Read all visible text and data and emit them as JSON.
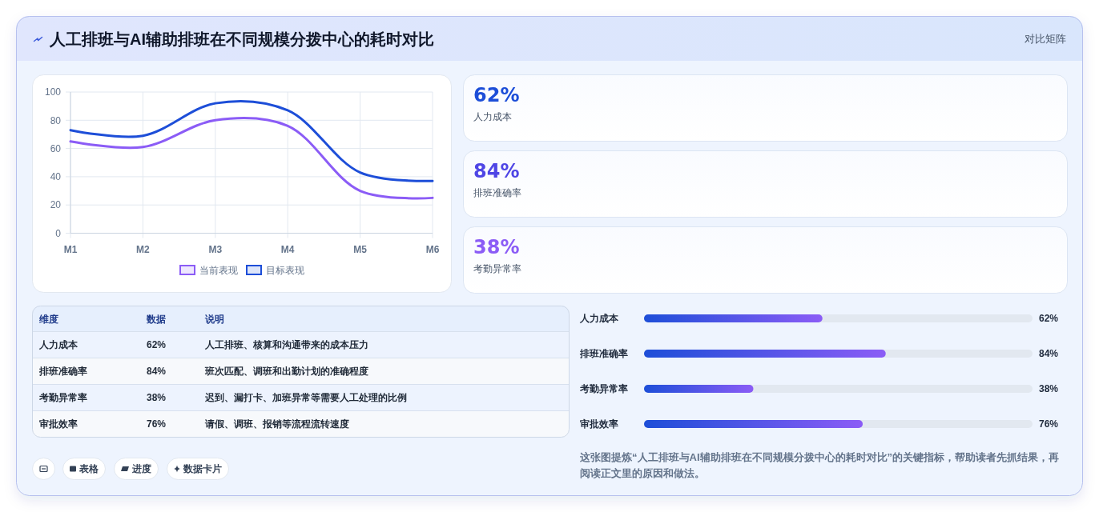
{
  "chart_data": [
    {
      "type": "other",
      "title": "人工排班与AI辅助排班在不同规模分拨中心的耗时对比",
      "annotations": [
        "对比矩阵"
      ]
    },
    {
      "type": "line",
      "categories": [
        "M1",
        "M2",
        "M3",
        "M4",
        "M5",
        "M6"
      ],
      "series": [
        {
          "name": "当前表现",
          "color": "#8b5cf6",
          "values": [
            65,
            61,
            80,
            76,
            30,
            25
          ]
        },
        {
          "name": "目标表现",
          "color": "#1d4ed8",
          "values": [
            73,
            69,
            92,
            87,
            43,
            37
          ]
        }
      ],
      "ylim": [
        0,
        100
      ],
      "yticks": [
        0,
        20,
        40,
        60,
        80,
        100
      ],
      "grid": true,
      "legend": "bottom"
    },
    {
      "type": "other",
      "annotations": [
        "62%",
        "人力成本",
        "84%",
        "排班准确率",
        "38%",
        "考勤异常率"
      ],
      "colors": [
        "#1d4ed8",
        "#4f46e5",
        "#8b5cf6"
      ]
    },
    {
      "type": "other",
      "annotations": [
        "维度",
        "数据",
        "说明",
        "人力成本",
        "62%",
        "人工排班、核算和沟通带来的成本压力",
        "排班准确率",
        "84%",
        "班次匹配、调班和出勤计划的准确程度",
        "考勤异常率",
        "38%",
        "迟到、漏打卡、加班异常等需要人工处理的比例",
        "审批效率",
        "76%",
        "请假、调班、报销等流程流转速度"
      ]
    },
    {
      "type": "bar",
      "orientation": "horizontal",
      "categories": [
        "人力成本",
        "排班准确率",
        "考勤异常率",
        "审批效率"
      ],
      "values": [
        62,
        84,
        38,
        76
      ],
      "value_labels": [
        "62%",
        "84%",
        "38%",
        "76%"
      ],
      "color": "#1d4ed8",
      "xlim": [
        0,
        135
      ],
      "tick_labels": "y",
      "annotations": [
        "这张图提炼“人工排班与AI辅助排班在不同规模分拨中心的耗时对比”的关键指标，帮助读者先抓结果，再阅读正文里的原因和做法。"
      ]
    },
    {
      "type": "other",
      "annotations": [
        "表格",
        "进度",
        "数据卡片"
      ]
    }
  ]
}
